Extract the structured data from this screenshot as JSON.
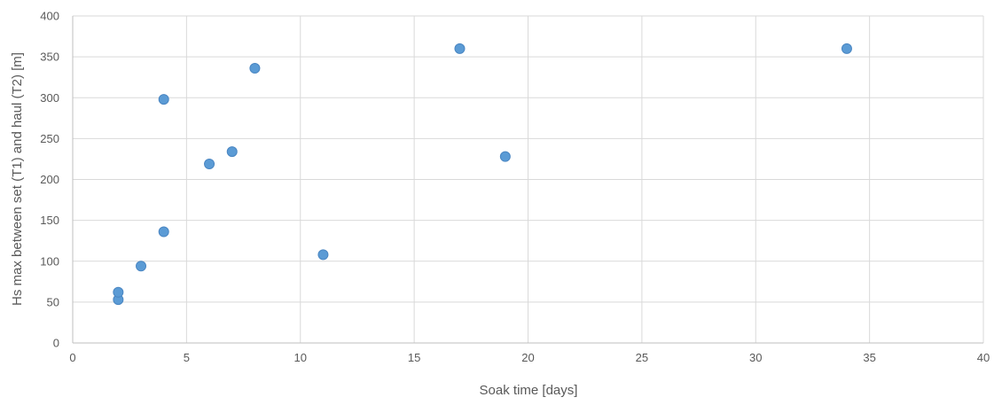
{
  "chart_data": {
    "type": "scatter",
    "title": "",
    "xlabel": "Soak time [days]",
    "ylabel": "Hs max between set (T1) and haul (T2) [m]",
    "xlim": [
      0,
      40
    ],
    "ylim": [
      0,
      400
    ],
    "x_ticks": [
      0,
      5,
      10,
      15,
      20,
      25,
      30,
      35,
      40
    ],
    "y_ticks": [
      0,
      50,
      100,
      150,
      200,
      250,
      300,
      350,
      400
    ],
    "grid": true,
    "legend": "none",
    "marker_color": "#5b9bd5",
    "marker_edge_color": "#4a86c2",
    "grid_color": "#d9d9d9",
    "series": [
      {
        "points": [
          {
            "x": 2,
            "y": 53
          },
          {
            "x": 2,
            "y": 62
          },
          {
            "x": 3,
            "y": 94
          },
          {
            "x": 4,
            "y": 136
          },
          {
            "x": 4,
            "y": 298
          },
          {
            "x": 6,
            "y": 219
          },
          {
            "x": 7,
            "y": 234
          },
          {
            "x": 8,
            "y": 336
          },
          {
            "x": 11,
            "y": 108
          },
          {
            "x": 17,
            "y": 360
          },
          {
            "x": 19,
            "y": 228
          },
          {
            "x": 34,
            "y": 360
          }
        ]
      }
    ]
  }
}
